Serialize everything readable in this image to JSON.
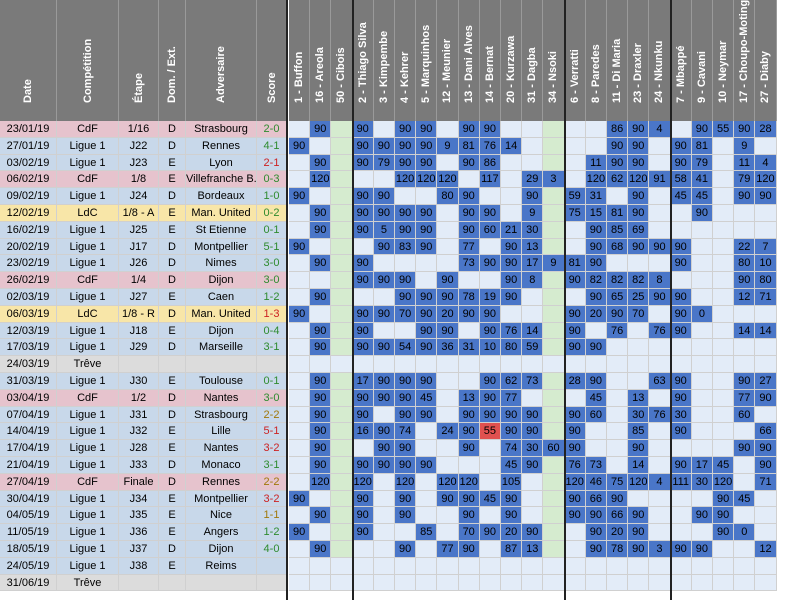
{
  "headers": {
    "info": [
      "Date",
      "Compétition",
      "Étape",
      "Dom. / Ext.",
      "Adversaire",
      "Score"
    ],
    "players": [
      "1 - Buffon",
      "16 - Areola",
      "50 - Cibois",
      "2 - Thiago Silva",
      "3 - Kimpembe",
      "4 - Kehrer",
      "5 - Marquinhos",
      "12 - Meunier",
      "13 - Dani Alves",
      "14 - Bernat",
      "20 - Kurzawa",
      "31 - Dagba",
      "34 - Nsoki",
      "6 - Verratti",
      "8 - Paredes",
      "11 - Di Maria",
      "23 - Draxler",
      "24 - Nkunku",
      "7 - Mbappé",
      "9 - Cavani",
      "10 - Neymar",
      "17 - Choupo-Moting",
      "27 - Diaby"
    ]
  },
  "rows": [
    {
      "date": "23/01/19",
      "comp": "CdF",
      "stage": "1/16",
      "venue": "D",
      "opp": "Strasbourg",
      "score": "2-0",
      "res": "W",
      "min": [
        "",
        "90",
        "",
        "90",
        "",
        "90",
        "90",
        "",
        "90",
        "90",
        "",
        "",
        "",
        "",
        "",
        "86",
        "90",
        "4",
        "",
        "90",
        "55",
        "90",
        "28"
      ]
    },
    {
      "date": "27/01/19",
      "comp": "Ligue 1",
      "stage": "J22",
      "venue": "D",
      "opp": "Rennes",
      "score": "4-1",
      "res": "W",
      "min": [
        "90",
        "",
        "",
        "90",
        "90",
        "90",
        "90",
        "9",
        "81",
        "76",
        "14",
        "",
        "",
        "",
        "",
        "90",
        "90",
        "",
        "90",
        "81",
        "",
        "9",
        ""
      ]
    },
    {
      "date": "03/02/19",
      "comp": "Ligue 1",
      "stage": "J23",
      "venue": "E",
      "opp": "Lyon",
      "score": "2-1",
      "res": "L",
      "min": [
        "",
        "90",
        "",
        "90",
        "79",
        "90",
        "90",
        "",
        "90",
        "86",
        "",
        "",
        "",
        "",
        "11",
        "90",
        "90",
        "",
        "90",
        "79",
        "",
        "11",
        "4"
      ]
    },
    {
      "date": "06/02/19",
      "comp": "CdF",
      "stage": "1/8",
      "venue": "E",
      "opp": "Villefranche B.",
      "score": "0-3",
      "res": "W",
      "min": [
        "",
        "120",
        "",
        "",
        "",
        "120",
        "120",
        "120",
        "",
        "117",
        "",
        "29",
        "3",
        "",
        "120",
        "62",
        "120",
        "91",
        "58",
        "41",
        "",
        "79",
        "120"
      ]
    },
    {
      "date": "09/02/19",
      "comp": "Ligue 1",
      "stage": "J24",
      "venue": "D",
      "opp": "Bordeaux",
      "score": "1-0",
      "res": "W",
      "min": [
        "90",
        "",
        "",
        "90",
        "90",
        "",
        "",
        "80",
        "90",
        "",
        "",
        "90",
        "",
        "59",
        "31",
        "",
        "90",
        "",
        "45",
        "45",
        "",
        "90",
        "90"
      ]
    },
    {
      "date": "12/02/19",
      "comp": "LdC",
      "stage": "1/8 - A",
      "venue": "E",
      "opp": "Man. United",
      "score": "0-2",
      "res": "W",
      "min": [
        "",
        "90",
        "",
        "90",
        "90",
        "90",
        "90",
        "",
        "90",
        "90",
        "",
        "9",
        "",
        "75",
        "15",
        "81",
        "90",
        "",
        "",
        "90",
        "",
        "",
        ""
      ]
    },
    {
      "date": "16/02/19",
      "comp": "Ligue 1",
      "stage": "J25",
      "venue": "E",
      "opp": "St Etienne",
      "score": "0-1",
      "res": "W",
      "min": [
        "",
        "90",
        "",
        "90",
        "5",
        "90",
        "90",
        "",
        "90",
        "60",
        "21",
        "30",
        "",
        "",
        "90",
        "85",
        "69",
        "",
        "",
        "",
        "",
        "",
        ""
      ]
    },
    {
      "date": "20/02/19",
      "comp": "Ligue 1",
      "stage": "J17",
      "venue": "D",
      "opp": "Montpellier",
      "score": "5-1",
      "res": "W",
      "min": [
        "90",
        "",
        "",
        "",
        "90",
        "83",
        "90",
        "",
        "77",
        "",
        "90",
        "13",
        "",
        "",
        "90",
        "68",
        "90",
        "90",
        "90",
        "",
        "",
        "22",
        "7"
      ]
    },
    {
      "date": "23/02/19",
      "comp": "Ligue 1",
      "stage": "J26",
      "venue": "D",
      "opp": "Nimes",
      "score": "3-0",
      "res": "W",
      "min": [
        "",
        "90",
        "",
        "90",
        "",
        "",
        "",
        "",
        "73",
        "90",
        "90",
        "17",
        "9",
        "81",
        "90",
        "",
        "",
        "",
        "90",
        "",
        "",
        "80",
        "10"
      ]
    },
    {
      "date": "26/02/19",
      "comp": "CdF",
      "stage": "1/4",
      "venue": "D",
      "opp": "Dijon",
      "score": "3-0",
      "res": "W",
      "min": [
        "",
        "",
        "",
        "90",
        "90",
        "90",
        "",
        "90",
        "",
        "",
        "90",
        "8",
        "",
        "90",
        "82",
        "82",
        "82",
        "8",
        "",
        "",
        "",
        "90",
        "80"
      ]
    },
    {
      "date": "02/03/19",
      "comp": "Ligue 1",
      "stage": "J27",
      "venue": "E",
      "opp": "Caen",
      "score": "1-2",
      "res": "W",
      "min": [
        "",
        "90",
        "",
        "",
        "",
        "90",
        "90",
        "90",
        "78",
        "19",
        "90",
        "",
        "",
        "",
        "90",
        "65",
        "25",
        "90",
        "90",
        "",
        "",
        "12",
        "71"
      ]
    },
    {
      "date": "06/03/19",
      "comp": "LdC",
      "stage": "1/8 - R",
      "venue": "D",
      "opp": "Man. United",
      "score": "1-3",
      "res": "L",
      "min": [
        "90",
        "",
        "",
        "90",
        "90",
        "70",
        "90",
        "20",
        "90",
        "90",
        "",
        "",
        "",
        "90",
        "20",
        "90",
        "70",
        "",
        "90",
        "0",
        "",
        "",
        ""
      ]
    },
    {
      "date": "12/03/19",
      "comp": "Ligue 1",
      "stage": "J18",
      "venue": "E",
      "opp": "Dijon",
      "score": "0-4",
      "res": "W",
      "min": [
        "",
        "90",
        "",
        "90",
        "",
        "",
        "90",
        "90",
        "",
        "90",
        "76",
        "14",
        "",
        "90",
        "",
        "76",
        "",
        "76",
        "90",
        "",
        "",
        "14",
        "14"
      ]
    },
    {
      "date": "17/03/19",
      "comp": "Ligue 1",
      "stage": "J29",
      "venue": "D",
      "opp": "Marseille",
      "score": "3-1",
      "res": "W",
      "min": [
        "",
        "90",
        "",
        "90",
        "90",
        "54",
        "90",
        "36",
        "31",
        "10",
        "80",
        "59",
        "",
        "90",
        "90",
        "",
        "",
        "",
        "",
        "",
        "",
        "",
        ""
      ]
    },
    {
      "date": "24/03/19",
      "comp": "Trêve",
      "stage": "",
      "venue": "",
      "opp": "",
      "score": "",
      "res": "",
      "min": [
        "",
        "",
        "",
        "",
        "",
        "",
        "",
        "",
        "",
        "",
        "",
        "",
        "",
        "",
        "",
        "",
        "",
        "",
        "",
        "",
        "",
        "",
        ""
      ]
    },
    {
      "date": "31/03/19",
      "comp": "Ligue 1",
      "stage": "J30",
      "venue": "E",
      "opp": "Toulouse",
      "score": "0-1",
      "res": "W",
      "min": [
        "",
        "90",
        "",
        "17",
        "90",
        "90",
        "90",
        "",
        "",
        "90",
        "62",
        "73",
        "",
        "28",
        "90",
        "",
        "",
        "63",
        "90",
        "",
        "",
        "90",
        "27"
      ]
    },
    {
      "date": "03/04/19",
      "comp": "CdF",
      "stage": "1/2",
      "venue": "D",
      "opp": "Nantes",
      "score": "3-0",
      "res": "W",
      "min": [
        "",
        "90",
        "",
        "90",
        "90",
        "90",
        "45",
        "",
        "13",
        "90",
        "77",
        "",
        "",
        "",
        "45",
        "",
        "13",
        "",
        "90",
        "",
        "",
        "77",
        "90"
      ]
    },
    {
      "date": "07/04/19",
      "comp": "Ligue 1",
      "stage": "J31",
      "venue": "D",
      "opp": "Strasbourg",
      "score": "2-2",
      "res": "D",
      "min": [
        "",
        "90",
        "",
        "90",
        "",
        "90",
        "90",
        "",
        "90",
        "90",
        "90",
        "90",
        "",
        "90",
        "60",
        "",
        "30",
        "76",
        "30",
        "",
        "",
        "60",
        ""
      ]
    },
    {
      "date": "14/04/19",
      "comp": "Ligue 1",
      "stage": "J32",
      "venue": "E",
      "opp": "Lille",
      "score": "5-1",
      "res": "L",
      "min": [
        "",
        "90",
        "",
        "16",
        "90",
        "74",
        "",
        "24",
        "90",
        "55",
        "90",
        "90",
        "",
        "90",
        "",
        "",
        "85",
        "",
        "90",
        "",
        "",
        "",
        "66"
      ]
    },
    {
      "date": "17/04/19",
      "comp": "Ligue 1",
      "stage": "J28",
      "venue": "E",
      "opp": "Nantes",
      "score": "3-2",
      "res": "L",
      "min": [
        "",
        "90",
        "",
        "",
        "90",
        "90",
        "",
        "",
        "90",
        "",
        "74",
        "30",
        "60",
        "90",
        "",
        "",
        "90",
        "",
        "",
        "",
        "",
        "90",
        "90"
      ]
    },
    {
      "date": "21/04/19",
      "comp": "Ligue 1",
      "stage": "J33",
      "venue": "D",
      "opp": "Monaco",
      "score": "3-1",
      "res": "W",
      "min": [
        "",
        "90",
        "",
        "90",
        "90",
        "90",
        "90",
        "",
        "",
        "",
        "45",
        "90",
        "",
        "76",
        "73",
        "",
        "14",
        "",
        "90",
        "17",
        "45",
        "",
        "90"
      ]
    },
    {
      "date": "27/04/19",
      "comp": "CdF",
      "stage": "Finale",
      "venue": "D",
      "opp": "Rennes",
      "score": "2-2",
      "res": "D",
      "min": [
        "",
        "120",
        "",
        "120",
        "",
        "120",
        "",
        "120",
        "120",
        "",
        "105",
        "",
        "",
        "120",
        "46",
        "75",
        "120",
        "4",
        "111",
        "30",
        "120",
        "",
        "71"
      ]
    },
    {
      "date": "30/04/19",
      "comp": "Ligue 1",
      "stage": "J34",
      "venue": "E",
      "opp": "Montpellier",
      "score": "3-2",
      "res": "L",
      "min": [
        "90",
        "",
        "",
        "90",
        "",
        "90",
        "",
        "90",
        "90",
        "45",
        "90",
        "",
        "",
        "90",
        "66",
        "90",
        "",
        "",
        "",
        "",
        "90",
        "45",
        ""
      ]
    },
    {
      "date": "04/05/19",
      "comp": "Ligue 1",
      "stage": "J35",
      "venue": "E",
      "opp": "Nice",
      "score": "1-1",
      "res": "D",
      "min": [
        "",
        "90",
        "",
        "90",
        "",
        "90",
        "",
        "",
        "90",
        "",
        "90",
        "",
        "",
        "90",
        "90",
        "66",
        "90",
        "",
        "",
        "90",
        "90",
        "",
        ""
      ]
    },
    {
      "date": "11/05/19",
      "comp": "Ligue 1",
      "stage": "J36",
      "venue": "E",
      "opp": "Angers",
      "score": "1-2",
      "res": "W",
      "min": [
        "90",
        "",
        "",
        "90",
        "",
        "",
        "85",
        "",
        "70",
        "90",
        "20",
        "90",
        "",
        "",
        "90",
        "20",
        "90",
        "",
        "",
        "",
        "90",
        "0",
        ""
      ]
    },
    {
      "date": "18/05/19",
      "comp": "Ligue 1",
      "stage": "J37",
      "venue": "D",
      "opp": "Dijon",
      "score": "4-0",
      "res": "W",
      "min": [
        "",
        "90",
        "",
        "",
        "",
        "90",
        "",
        "77",
        "90",
        "",
        "87",
        "13",
        "",
        "",
        "90",
        "78",
        "90",
        "3",
        "90",
        "90",
        "",
        "",
        "12"
      ]
    },
    {
      "date": "24/05/19",
      "comp": "Ligue 1",
      "stage": "J38",
      "venue": "E",
      "opp": "Reims",
      "score": "",
      "res": "",
      "min": [
        "",
        "",
        "",
        "",
        "",
        "",
        "",
        "",
        "",
        "",
        "",
        "",
        "",
        "",
        "",
        "",
        "",
        "",
        "",
        "",
        "",
        "",
        ""
      ]
    },
    {
      "date": "31/06/19",
      "comp": "Trêve",
      "stage": "",
      "venue": "",
      "opp": "",
      "score": "",
      "res": "",
      "min": [
        "",
        "",
        "",
        "",
        "",
        "",
        "",
        "",
        "",
        "",
        "",
        "",
        "",
        "",
        "",
        "",
        "",
        "",
        "",
        "",
        "",
        "",
        ""
      ]
    }
  ],
  "colors": {
    "header": "#7a7a7a",
    "cdf": "#e6c3cd",
    "ligue1": "#c8d8ea",
    "ldc": "#f8e6a8",
    "treve": "#dcdcdc",
    "played": "#4a76c8",
    "unused": "#e3ecf8",
    "absent": "#d5ebcf",
    "injured": "#e0514f",
    "suspended": "#fbe5ae",
    "win": "#2e8b2e",
    "loss": "#cc2222",
    "draw": "#a07808"
  }
}
